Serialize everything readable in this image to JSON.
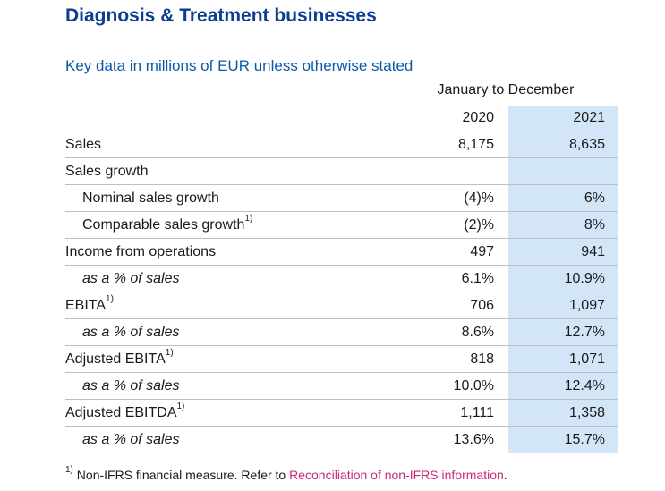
{
  "title": "Diagnosis & Treatment businesses",
  "subtitle": "Key data in millions of EUR unless otherwise stated",
  "period": "January to December",
  "columns": [
    "2020",
    "2021"
  ],
  "rows": [
    {
      "label": "Sales",
      "sup": "",
      "style": "normal",
      "v2020": "8,175",
      "v2021": "8,635"
    },
    {
      "label": "Sales growth",
      "sup": "",
      "style": "normal",
      "v2020": "",
      "v2021": ""
    },
    {
      "label": "Nominal sales growth",
      "sup": "",
      "style": "indent",
      "v2020": "(4)%",
      "v2021": "6%"
    },
    {
      "label": "Comparable sales growth",
      "sup": "1)",
      "style": "indent",
      "v2020": "(2)%",
      "v2021": "8%"
    },
    {
      "label": "Income from operations",
      "sup": "",
      "style": "normal",
      "v2020": "497",
      "v2021": "941"
    },
    {
      "label": "as a % of sales",
      "sup": "",
      "style": "italic",
      "v2020": "6.1%",
      "v2021": "10.9%"
    },
    {
      "label": "EBITA",
      "sup": "1)",
      "style": "normal",
      "v2020": "706",
      "v2021": "1,097"
    },
    {
      "label": "as a % of sales",
      "sup": "",
      "style": "italic",
      "v2020": "8.6%",
      "v2021": "12.7%"
    },
    {
      "label": "Adjusted EBITA",
      "sup": "1)",
      "style": "normal",
      "v2020": "818",
      "v2021": "1,071"
    },
    {
      "label": "as a % of sales",
      "sup": "",
      "style": "italic",
      "v2020": "10.0%",
      "v2021": "12.4%"
    },
    {
      "label": "Adjusted EBITDA",
      "sup": "1)",
      "style": "normal",
      "v2020": "1,111",
      "v2021": "1,358"
    },
    {
      "label": "as a % of sales",
      "sup": "",
      "style": "italic",
      "v2020": "13.6%",
      "v2021": "15.7%"
    }
  ],
  "footnote": {
    "marker": "1)",
    "text": " Non-IFRS financial measure. Refer to ",
    "link": "Reconciliation of non-IFRS information",
    "end": "."
  }
}
